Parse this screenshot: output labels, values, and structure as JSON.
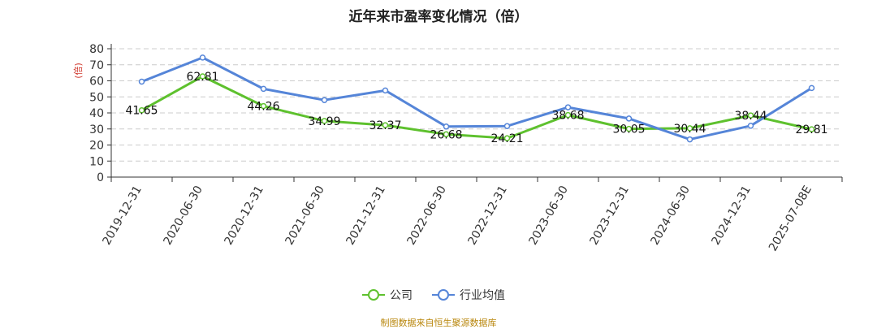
{
  "chart_data": {
    "type": "line",
    "title": "近年来市盈率变化情况（倍）",
    "ylabel": "(倍)",
    "ylim": [
      0,
      80
    ],
    "yticks": [
      0,
      10,
      20,
      30,
      40,
      50,
      60,
      70,
      80
    ],
    "grid": true,
    "legend_position": "bottom-center",
    "categories": [
      "2019-12-31",
      "2020-06-30",
      "2020-12-31",
      "2021-06-30",
      "2021-12-31",
      "2022-06-30",
      "2022-12-31",
      "2023-06-30",
      "2023-12-31",
      "2024-06-30",
      "2024-12-31",
      "2025-07-08E"
    ],
    "series": [
      {
        "name": "公司",
        "color": "#5ec12e",
        "values": [
          41.65,
          62.81,
          44.26,
          34.99,
          32.37,
          26.68,
          24.21,
          38.68,
          30.05,
          30.44,
          38.44,
          29.81
        ],
        "labels": [
          "41.65",
          "62.81",
          "44.26",
          "34.99",
          "32.37",
          "26.68",
          "24.21",
          "38.68",
          "30.05",
          "30.44",
          "38.44",
          "29.81"
        ]
      },
      {
        "name": "行业均值",
        "color": "#5585d8",
        "values": [
          59.5,
          74.5,
          55.0,
          48.0,
          54.0,
          31.5,
          31.8,
          43.5,
          36.5,
          23.5,
          32.0,
          55.5
        ]
      }
    ]
  },
  "source": "制图数据来自恒生聚源数据库"
}
